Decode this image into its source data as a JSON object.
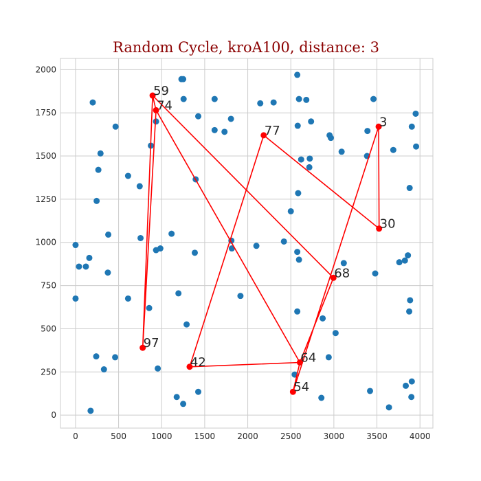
{
  "chart_data": {
    "type": "scatter",
    "title": "Random Cycle, kroA100, distance: 3",
    "xlabel": "",
    "ylabel": "",
    "xlim": [
      -175,
      4150
    ],
    "ylim": [
      -75,
      2065
    ],
    "xticks": [
      0,
      500,
      1000,
      1500,
      2000,
      2500,
      3000,
      3500,
      4000
    ],
    "yticks": [
      0,
      250,
      500,
      750,
      1000,
      1250,
      1500,
      1750,
      2000
    ],
    "grid": true,
    "colors": {
      "points": "#1f77b4",
      "cycle": "#ff0000",
      "title": "#8b0000",
      "grid": "#cccccc"
    },
    "points": [
      [
        200,
        1810
      ],
      [
        465,
        1670
      ],
      [
        290,
        1515
      ],
      [
        265,
        1420
      ],
      [
        245,
        1240
      ],
      [
        610,
        1385
      ],
      [
        745,
        1325
      ],
      [
        875,
        1560
      ],
      [
        935,
        1700
      ],
      [
        1230,
        1945
      ],
      [
        1250,
        1945
      ],
      [
        1255,
        1830
      ],
      [
        1425,
        1730
      ],
      [
        1615,
        1830
      ],
      [
        1615,
        1650
      ],
      [
        1730,
        1640
      ],
      [
        1805,
        1715
      ],
      [
        2145,
        1805
      ],
      [
        2300,
        1810
      ],
      [
        2575,
        1970
      ],
      [
        2595,
        1830
      ],
      [
        2680,
        1825
      ],
      [
        2580,
        1675
      ],
      [
        2735,
        1700
      ],
      [
        2620,
        1480
      ],
      [
        2720,
        1485
      ],
      [
        2715,
        1435
      ],
      [
        2950,
        1620
      ],
      [
        2965,
        1605
      ],
      [
        3090,
        1525
      ],
      [
        3390,
        1645
      ],
      [
        3460,
        1830
      ],
      [
        3690,
        1535
      ],
      [
        3905,
        1670
      ],
      [
        3950,
        1745
      ],
      [
        3955,
        1555
      ],
      [
        3880,
        1315
      ],
      [
        3385,
        1500
      ],
      [
        2585,
        1285
      ],
      [
        2500,
        1180
      ],
      [
        1395,
        1365
      ],
      [
        0,
        985
      ],
      [
        40,
        860
      ],
      [
        120,
        860
      ],
      [
        160,
        910
      ],
      [
        380,
        1045
      ],
      [
        375,
        825
      ],
      [
        755,
        1025
      ],
      [
        935,
        955
      ],
      [
        985,
        965
      ],
      [
        1115,
        1050
      ],
      [
        1385,
        940
      ],
      [
        1810,
        1010
      ],
      [
        1815,
        965
      ],
      [
        2100,
        980
      ],
      [
        2420,
        1005
      ],
      [
        2575,
        945
      ],
      [
        2595,
        900
      ],
      [
        3115,
        880
      ],
      [
        3760,
        885
      ],
      [
        3825,
        895
      ],
      [
        3860,
        925
      ],
      [
        3480,
        820
      ],
      [
        0,
        675
      ],
      [
        610,
        675
      ],
      [
        855,
        620
      ],
      [
        1195,
        705
      ],
      [
        1915,
        690
      ],
      [
        3885,
        665
      ],
      [
        3875,
        600
      ],
      [
        2575,
        600
      ],
      [
        2870,
        560
      ],
      [
        3020,
        475
      ],
      [
        1290,
        525
      ],
      [
        240,
        340
      ],
      [
        460,
        335
      ],
      [
        330,
        265
      ],
      [
        955,
        270
      ],
      [
        2940,
        335
      ],
      [
        2545,
        235
      ],
      [
        1175,
        105
      ],
      [
        1250,
        65
      ],
      [
        1425,
        135
      ],
      [
        175,
        25
      ],
      [
        2855,
        100
      ],
      [
        3420,
        140
      ],
      [
        3640,
        45
      ],
      [
        3835,
        170
      ],
      [
        3905,
        195
      ],
      [
        3900,
        105
      ]
    ],
    "cycle": [
      {
        "id": "59",
        "x": 895,
        "y": 1850
      },
      {
        "id": "74",
        "x": 935,
        "y": 1765
      },
      {
        "id": "64",
        "x": 2605,
        "y": 305
      },
      {
        "id": "54",
        "x": 2525,
        "y": 135
      },
      {
        "id": "3",
        "x": 3520,
        "y": 1670
      },
      {
        "id": "30",
        "x": 3525,
        "y": 1080
      },
      {
        "id": "77",
        "x": 2185,
        "y": 1620
      },
      {
        "id": "42",
        "x": 1325,
        "y": 280
      },
      {
        "id": "64",
        "x": 2605,
        "y": 305
      },
      {
        "id": "68",
        "x": 2995,
        "y": 795
      },
      {
        "id": "59",
        "x": 895,
        "y": 1850
      },
      {
        "id": "97",
        "x": 780,
        "y": 390
      },
      {
        "id": "74",
        "x": 935,
        "y": 1765
      }
    ],
    "labeled_nodes": [
      {
        "id": "59",
        "x": 895,
        "y": 1850
      },
      {
        "id": "74",
        "x": 935,
        "y": 1765
      },
      {
        "id": "77",
        "x": 2185,
        "y": 1620
      },
      {
        "id": "3",
        "x": 3520,
        "y": 1670
      },
      {
        "id": "30",
        "x": 3525,
        "y": 1080
      },
      {
        "id": "68",
        "x": 2995,
        "y": 795
      },
      {
        "id": "97",
        "x": 780,
        "y": 390
      },
      {
        "id": "42",
        "x": 1325,
        "y": 280
      },
      {
        "id": "64",
        "x": 2605,
        "y": 305
      },
      {
        "id": "54",
        "x": 2525,
        "y": 135
      }
    ]
  }
}
